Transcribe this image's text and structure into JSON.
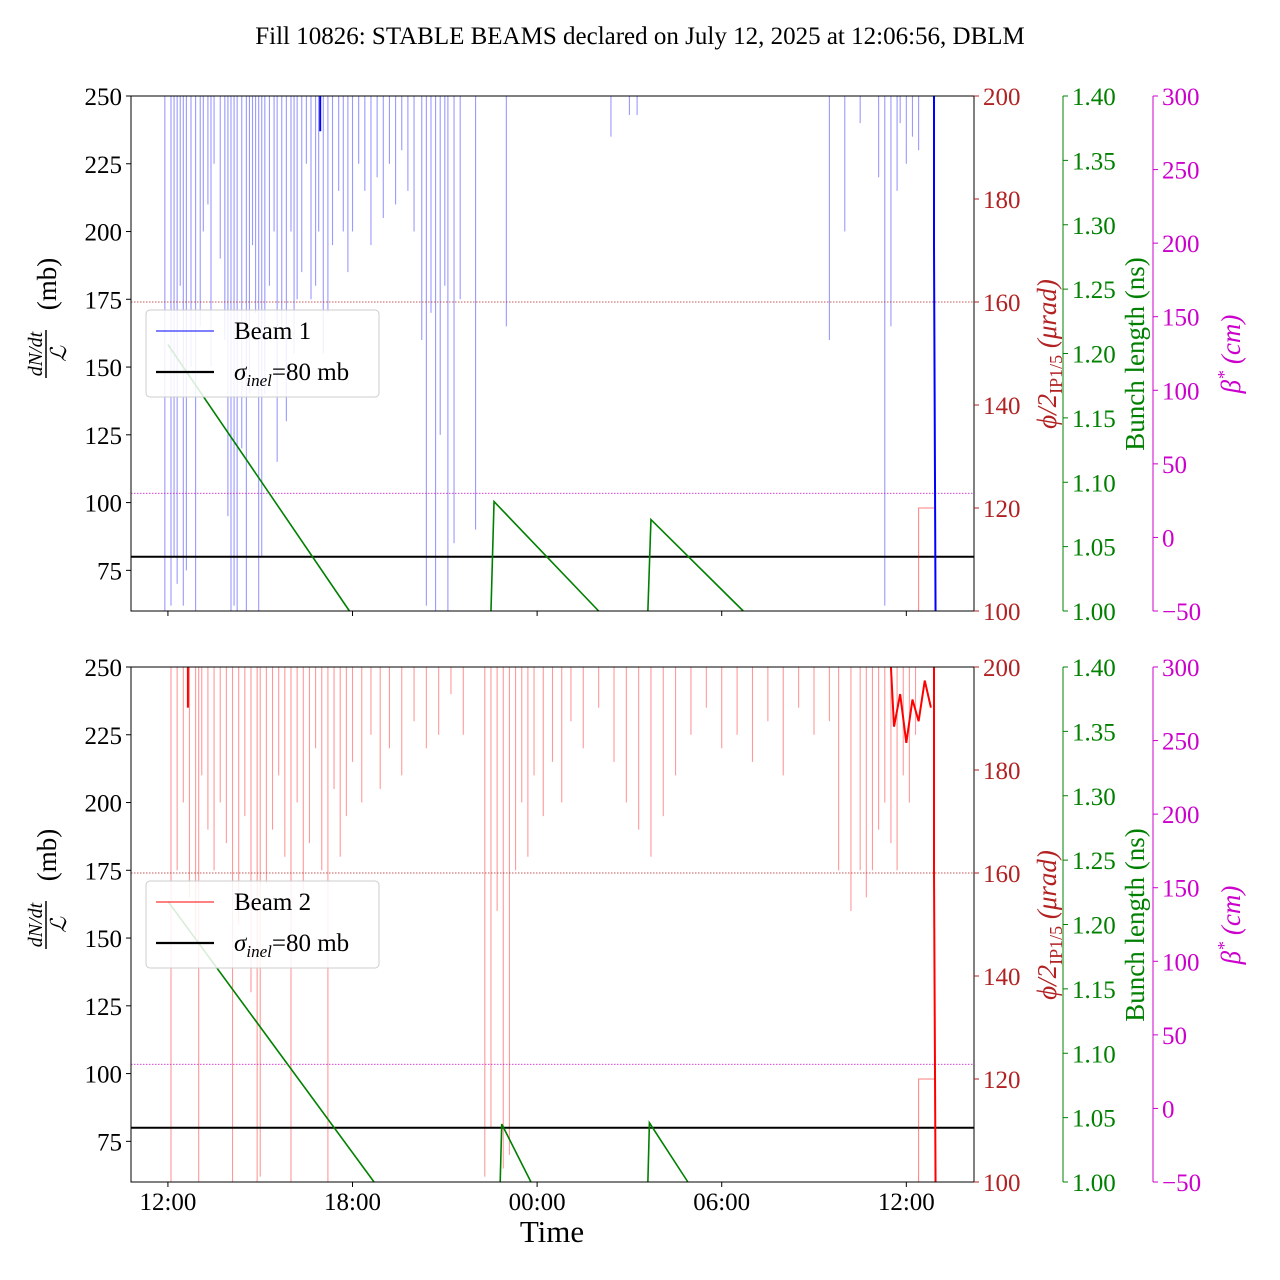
{
  "title": "Fill 10826: STABLE BEAMS declared on July 12, 2025 at 12:06:56, DBLM",
  "colors": {
    "beam1": "#0000ff",
    "beam2": "#ff0000",
    "crossing": "#b22222",
    "bunch": "#008000",
    "beta": "#cc00cc",
    "sigma": "#000000"
  },
  "axes_labels": {
    "left_num": "dN/dt",
    "left_den": "ℒ",
    "left_unit": "(mb)",
    "crossing": "ϕ/2",
    "crossing_sub": "IP1/5",
    "crossing_unit": " (μrad)",
    "bunch": "Bunch length (ns)",
    "beta": "β",
    "beta_sup": "*",
    "beta_unit": " (cm)"
  },
  "legend": {
    "beam1": "Beam 1",
    "beam2": "Beam 2",
    "sigma_sym": "σ",
    "sigma_sub": "inel",
    "sigma_rest": "=80 mb"
  },
  "xlabel": "Time",
  "chart_data": {
    "type": "line",
    "x_unit": "hours relative to 12:00 on July 12, 2025",
    "xlim": [
      -1.2,
      26.2
    ],
    "x_ticks": [
      {
        "x": 0,
        "label": "12:00"
      },
      {
        "x": 6,
        "label": "18:00"
      },
      {
        "x": 12,
        "label": "00:00"
      },
      {
        "x": 18,
        "label": "06:00"
      },
      {
        "x": 24,
        "label": "12:00"
      }
    ],
    "axes": {
      "left": {
        "range": [
          60,
          250
        ],
        "ticks": [
          75,
          100,
          125,
          150,
          175,
          200,
          225,
          250
        ]
      },
      "crossing": {
        "range": [
          100,
          200
        ],
        "ticks": [
          100,
          120,
          140,
          160,
          180,
          200
        ]
      },
      "bunch": {
        "range": [
          1.0,
          1.4
        ],
        "ticks": [
          "1.00",
          "1.05",
          "1.10",
          "1.15",
          "1.20",
          "1.25",
          "1.30",
          "1.35",
          "1.40"
        ]
      },
      "beta": {
        "range": [
          -50,
          300
        ],
        "ticks": [
          "−50",
          "0",
          "50",
          "100",
          "150",
          "200",
          "250",
          "300"
        ]
      }
    },
    "panels": [
      {
        "beam": "Beam 1",
        "sigma_inel": 80,
        "crossing_angle_urad": 160,
        "beta_star_cm": 30,
        "bunch_length_segments": [
          {
            "x": [
              0.0,
              5.9
            ],
            "y": [
              1.207,
              1.0
            ]
          },
          {
            "x": [
              10.5,
              10.6,
              14.0
            ],
            "y": [
              1.0,
              1.085,
              1.0
            ]
          },
          {
            "x": [
              15.6,
              15.7,
              18.7
            ],
            "y": [
              1.0,
              1.071,
              1.0
            ]
          }
        ],
        "beam_spikes": [
          {
            "x": -0.1,
            "y": 60
          },
          {
            "x": 0.1,
            "y": 62
          },
          {
            "x": 0.2,
            "y": 80
          },
          {
            "x": 0.3,
            "y": 70
          },
          {
            "x": 0.4,
            "y": 180
          },
          {
            "x": 0.5,
            "y": 62
          },
          {
            "x": 0.6,
            "y": 75
          },
          {
            "x": 0.75,
            "y": 150
          },
          {
            "x": 0.9,
            "y": 60
          },
          {
            "x": 1.05,
            "y": 165
          },
          {
            "x": 1.15,
            "y": 200
          },
          {
            "x": 1.3,
            "y": 210
          },
          {
            "x": 1.4,
            "y": 150
          },
          {
            "x": 1.5,
            "y": 225
          },
          {
            "x": 1.7,
            "y": 190
          },
          {
            "x": 1.85,
            "y": 160
          },
          {
            "x": 1.95,
            "y": 95
          },
          {
            "x": 2.05,
            "y": 60
          },
          {
            "x": 2.15,
            "y": 62
          },
          {
            "x": 2.25,
            "y": 60
          },
          {
            "x": 2.4,
            "y": 120
          },
          {
            "x": 2.55,
            "y": 60
          },
          {
            "x": 2.65,
            "y": 140
          },
          {
            "x": 2.75,
            "y": 195
          },
          {
            "x": 2.85,
            "y": 170
          },
          {
            "x": 2.95,
            "y": 60
          },
          {
            "x": 3.05,
            "y": 80
          },
          {
            "x": 3.15,
            "y": 140
          },
          {
            "x": 3.3,
            "y": 180
          },
          {
            "x": 3.45,
            "y": 200
          },
          {
            "x": 3.55,
            "y": 115
          },
          {
            "x": 3.7,
            "y": 165
          },
          {
            "x": 3.85,
            "y": 130
          },
          {
            "x": 4.0,
            "y": 200
          },
          {
            "x": 4.1,
            "y": 155
          },
          {
            "x": 4.2,
            "y": 175
          },
          {
            "x": 4.35,
            "y": 185
          },
          {
            "x": 4.5,
            "y": 225
          },
          {
            "x": 4.65,
            "y": 175
          },
          {
            "x": 4.8,
            "y": 180
          },
          {
            "x": 4.9,
            "y": 200
          },
          {
            "x": 5.05,
            "y": 155
          },
          {
            "x": 5.2,
            "y": 170
          },
          {
            "x": 5.35,
            "y": 195
          },
          {
            "x": 5.55,
            "y": 215
          },
          {
            "x": 5.7,
            "y": 200
          },
          {
            "x": 5.85,
            "y": 185
          },
          {
            "x": 6.0,
            "y": 200
          },
          {
            "x": 6.2,
            "y": 225
          },
          {
            "x": 6.4,
            "y": 215
          },
          {
            "x": 6.6,
            "y": 195
          },
          {
            "x": 6.8,
            "y": 220
          },
          {
            "x": 7.0,
            "y": 205
          },
          {
            "x": 7.2,
            "y": 225
          },
          {
            "x": 7.4,
            "y": 210
          },
          {
            "x": 7.6,
            "y": 230
          },
          {
            "x": 7.8,
            "y": 215
          },
          {
            "x": 8.0,
            "y": 200
          },
          {
            "x": 8.25,
            "y": 160
          },
          {
            "x": 8.4,
            "y": 62
          },
          {
            "x": 8.55,
            "y": 170
          },
          {
            "x": 8.7,
            "y": 60
          },
          {
            "x": 8.85,
            "y": 125
          },
          {
            "x": 9.0,
            "y": 180
          },
          {
            "x": 9.1,
            "y": 60
          },
          {
            "x": 9.3,
            "y": 85
          },
          {
            "x": 9.5,
            "y": 175
          },
          {
            "x": 10.0,
            "y": 90
          },
          {
            "x": 11.0,
            "y": 165
          },
          {
            "x": 14.4,
            "y": 235
          },
          {
            "x": 15.0,
            "y": 243
          },
          {
            "x": 15.25,
            "y": 243
          },
          {
            "x": 21.5,
            "y": 160
          },
          {
            "x": 22.0,
            "y": 200
          },
          {
            "x": 22.5,
            "y": 240
          },
          {
            "x": 23.1,
            "y": 220
          },
          {
            "x": 23.3,
            "y": 62
          },
          {
            "x": 23.5,
            "y": 165
          },
          {
            "x": 23.7,
            "y": 215
          },
          {
            "x": 23.8,
            "y": 240
          },
          {
            "x": 24.0,
            "y": 225
          },
          {
            "x": 24.2,
            "y": 235
          },
          {
            "x": 24.4,
            "y": 230
          }
        ],
        "beam_solid": [
          {
            "x": [
              4.95,
              4.95
            ],
            "y": [
              250,
              237
            ]
          },
          {
            "x": [
              24.9,
              24.9,
              24.95
            ],
            "y": [
              250,
              195,
              60
            ]
          }
        ],
        "step_trace": {
          "x": [
            24.4,
            24.4,
            24.9
          ],
          "y": [
            60,
            98,
            98
          ]
        }
      },
      {
        "beam": "Beam 2",
        "sigma_inel": 80,
        "crossing_angle_urad": 160,
        "beta_star_cm": 30,
        "bunch_length_segments": [
          {
            "x": [
              0.0,
              6.7
            ],
            "y": [
              1.218,
              1.0
            ]
          },
          {
            "x": [
              10.8,
              10.85,
              11.8
            ],
            "y": [
              1.0,
              1.045,
              1.0
            ]
          },
          {
            "x": [
              15.6,
              15.65,
              16.9
            ],
            "y": [
              1.0,
              1.046,
              1.0
            ]
          }
        ],
        "beam_spikes": [
          {
            "x": 0.1,
            "y": 60
          },
          {
            "x": 0.3,
            "y": 175
          },
          {
            "x": 0.5,
            "y": 200
          },
          {
            "x": 0.7,
            "y": 165
          },
          {
            "x": 0.9,
            "y": 150
          },
          {
            "x": 1.0,
            "y": 60
          },
          {
            "x": 1.1,
            "y": 210
          },
          {
            "x": 1.3,
            "y": 190
          },
          {
            "x": 1.5,
            "y": 175
          },
          {
            "x": 1.7,
            "y": 200
          },
          {
            "x": 1.9,
            "y": 185
          },
          {
            "x": 2.1,
            "y": 60
          },
          {
            "x": 2.3,
            "y": 155
          },
          {
            "x": 2.5,
            "y": 195
          },
          {
            "x": 2.7,
            "y": 130
          },
          {
            "x": 2.9,
            "y": 60
          },
          {
            "x": 3.0,
            "y": 62
          },
          {
            "x": 3.2,
            "y": 170
          },
          {
            "x": 3.4,
            "y": 190
          },
          {
            "x": 3.6,
            "y": 210
          },
          {
            "x": 3.8,
            "y": 180
          },
          {
            "x": 4.0,
            "y": 60
          },
          {
            "x": 4.2,
            "y": 200
          },
          {
            "x": 4.4,
            "y": 160
          },
          {
            "x": 4.6,
            "y": 185
          },
          {
            "x": 4.8,
            "y": 220
          },
          {
            "x": 5.0,
            "y": 175
          },
          {
            "x": 5.2,
            "y": 60
          },
          {
            "x": 5.4,
            "y": 205
          },
          {
            "x": 5.6,
            "y": 180
          },
          {
            "x": 5.8,
            "y": 195
          },
          {
            "x": 6.0,
            "y": 215
          },
          {
            "x": 6.3,
            "y": 200
          },
          {
            "x": 6.6,
            "y": 225
          },
          {
            "x": 6.9,
            "y": 205
          },
          {
            "x": 7.2,
            "y": 220
          },
          {
            "x": 7.6,
            "y": 210
          },
          {
            "x": 8.0,
            "y": 230
          },
          {
            "x": 8.4,
            "y": 220
          },
          {
            "x": 8.8,
            "y": 225
          },
          {
            "x": 9.2,
            "y": 240
          },
          {
            "x": 9.6,
            "y": 225
          },
          {
            "x": 10.3,
            "y": 62
          },
          {
            "x": 10.5,
            "y": 80
          },
          {
            "x": 10.7,
            "y": 160
          },
          {
            "x": 10.9,
            "y": 65
          },
          {
            "x": 11.1,
            "y": 70
          },
          {
            "x": 11.3,
            "y": 175
          },
          {
            "x": 11.5,
            "y": 200
          },
          {
            "x": 11.7,
            "y": 180
          },
          {
            "x": 11.9,
            "y": 210
          },
          {
            "x": 12.2,
            "y": 195
          },
          {
            "x": 12.5,
            "y": 215
          },
          {
            "x": 12.8,
            "y": 200
          },
          {
            "x": 13.1,
            "y": 230
          },
          {
            "x": 13.5,
            "y": 220
          },
          {
            "x": 14.0,
            "y": 235
          },
          {
            "x": 14.5,
            "y": 215
          },
          {
            "x": 14.9,
            "y": 200
          },
          {
            "x": 15.3,
            "y": 190
          },
          {
            "x": 15.7,
            "y": 180
          },
          {
            "x": 16.1,
            "y": 195
          },
          {
            "x": 16.5,
            "y": 210
          },
          {
            "x": 17.0,
            "y": 225
          },
          {
            "x": 17.5,
            "y": 235
          },
          {
            "x": 18.0,
            "y": 220
          },
          {
            "x": 18.5,
            "y": 225
          },
          {
            "x": 19.0,
            "y": 215
          },
          {
            "x": 19.5,
            "y": 230
          },
          {
            "x": 20.0,
            "y": 210
          },
          {
            "x": 20.5,
            "y": 235
          },
          {
            "x": 21.0,
            "y": 225
          },
          {
            "x": 21.5,
            "y": 230
          },
          {
            "x": 21.8,
            "y": 175
          },
          {
            "x": 22.2,
            "y": 160
          },
          {
            "x": 22.5,
            "y": 175
          },
          {
            "x": 22.7,
            "y": 165
          },
          {
            "x": 22.9,
            "y": 175
          },
          {
            "x": 23.1,
            "y": 190
          },
          {
            "x": 23.3,
            "y": 200
          },
          {
            "x": 23.5,
            "y": 185
          },
          {
            "x": 23.7,
            "y": 175
          },
          {
            "x": 23.9,
            "y": 210
          },
          {
            "x": 24.1,
            "y": 200
          },
          {
            "x": 24.3,
            "y": 225
          }
        ],
        "beam_solid": [
          {
            "x": [
              0.65,
              0.65
            ],
            "y": [
              250,
              235
            ]
          },
          {
            "x": [
              23.5,
              23.6,
              23.8,
              24.0,
              24.2,
              24.4,
              24.6,
              24.8
            ],
            "y": [
              250,
              228,
              240,
              222,
              238,
              230,
              245,
              235
            ]
          },
          {
            "x": [
              24.9,
              24.9,
              24.95
            ],
            "y": [
              250,
              175,
              60
            ]
          }
        ],
        "step_trace": {
          "x": [
            24.4,
            24.4,
            24.9
          ],
          "y": [
            60,
            98,
            98
          ]
        }
      }
    ]
  }
}
